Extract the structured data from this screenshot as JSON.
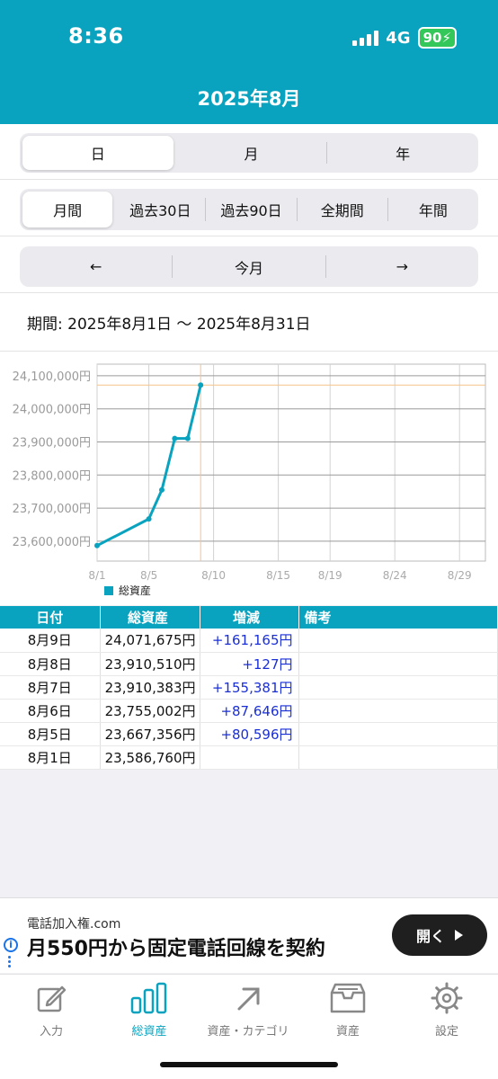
{
  "status_bar": {
    "time": "8:36",
    "network": "4G",
    "battery": "90"
  },
  "header": {
    "title": "2025年8月"
  },
  "unit_tabs": [
    {
      "label": "日",
      "active": true
    },
    {
      "label": "月",
      "active": false
    },
    {
      "label": "年",
      "active": false
    }
  ],
  "range_tabs": [
    {
      "label": "月間",
      "active": true
    },
    {
      "label": "過去30日",
      "active": false
    },
    {
      "label": "過去90日",
      "active": false
    },
    {
      "label": "全期間",
      "active": false
    },
    {
      "label": "年間",
      "active": false
    }
  ],
  "navigator": {
    "prev": "←",
    "current": "今月",
    "next": "→"
  },
  "period_label": "期間: 2025年8月1日 〜 2025年8月31日",
  "chart_data": {
    "type": "line",
    "x_ticks": [
      "8/1",
      "8/5",
      "8/10",
      "8/15",
      "8/19",
      "8/24",
      "8/29"
    ],
    "y_ticks": [
      "24,100,000円",
      "24,000,000円",
      "23,900,000円",
      "23,800,000円",
      "23,700,000円",
      "23,600,000円"
    ],
    "y_tick_values": [
      24100000,
      24000000,
      23900000,
      23800000,
      23700000,
      23600000
    ],
    "x_range": [
      1,
      31
    ],
    "ylim": [
      23540000,
      24135000
    ],
    "grid": true,
    "legend_position": "bottom-left",
    "series": [
      {
        "name": "総資産",
        "color": "#0aa3bf",
        "points": [
          {
            "x": 1,
            "y": 23586760
          },
          {
            "x": 5,
            "y": 23667356
          },
          {
            "x": 6,
            "y": 23755002
          },
          {
            "x": 7,
            "y": 23910383
          },
          {
            "x": 8,
            "y": 23910510
          },
          {
            "x": 9,
            "y": 24071675
          }
        ]
      }
    ],
    "crosshair": {
      "x": 9,
      "y": 24071675,
      "color": "#f5c48a"
    }
  },
  "table": {
    "headers": [
      "日付",
      "総資産",
      "増減",
      "備考"
    ],
    "rows": [
      {
        "date": "8月9日",
        "total": "24,071,675円",
        "change": "+161,165円",
        "note": ""
      },
      {
        "date": "8月8日",
        "total": "23,910,510円",
        "change": "+127円",
        "note": ""
      },
      {
        "date": "8月7日",
        "total": "23,910,383円",
        "change": "+155,381円",
        "note": ""
      },
      {
        "date": "8月6日",
        "total": "23,755,002円",
        "change": "+87,646円",
        "note": ""
      },
      {
        "date": "8月5日",
        "total": "23,667,356円",
        "change": "+80,596円",
        "note": ""
      },
      {
        "date": "8月1日",
        "total": "23,586,760円",
        "change": "",
        "note": ""
      }
    ]
  },
  "ad": {
    "domain": "電話加入権.com",
    "text": "月550円から固定電話回線を契約",
    "button": "開く"
  },
  "tabbar": [
    {
      "label": "入力",
      "icon": "edit-icon",
      "active": false
    },
    {
      "label": "総資産",
      "icon": "bar-chart-icon",
      "active": true
    },
    {
      "label": "資産・カテゴリ",
      "icon": "arrow-up-right-icon",
      "active": false
    },
    {
      "label": "資産",
      "icon": "archive-box-icon",
      "active": false
    },
    {
      "label": "設定",
      "icon": "gear-icon",
      "active": false
    }
  ],
  "colors": {
    "accent": "#0aa3bf",
    "positive_change": "#1a2fd6"
  }
}
